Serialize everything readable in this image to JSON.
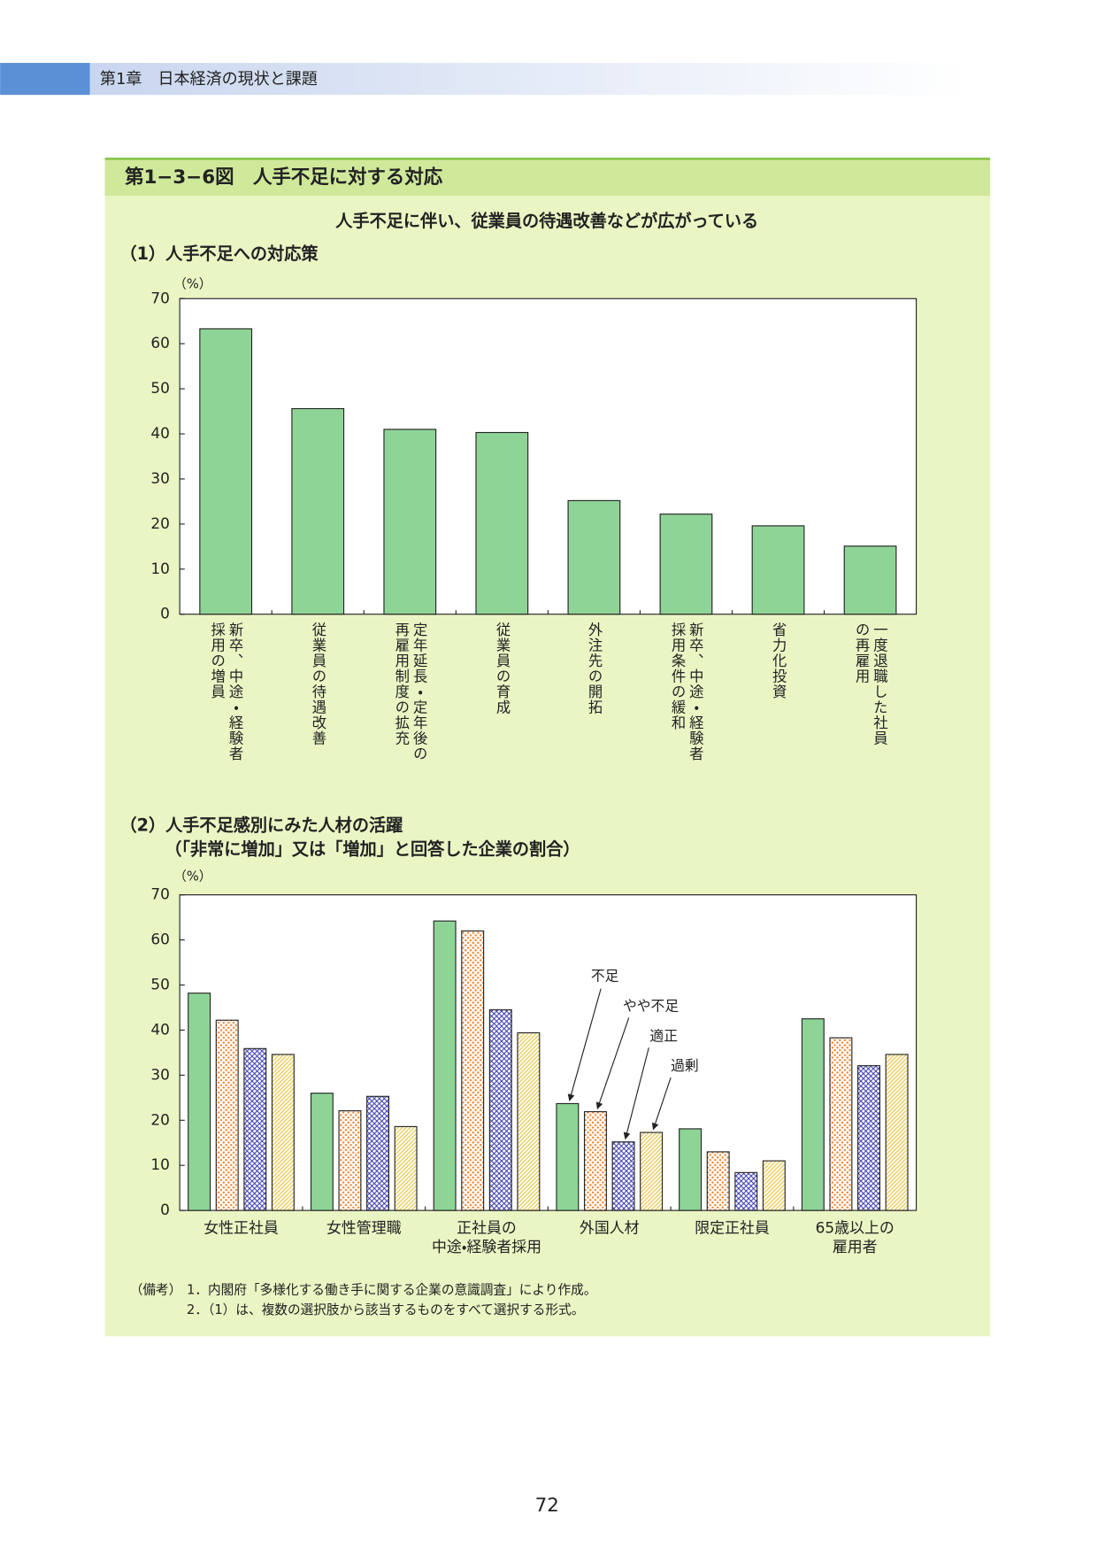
{
  "header": {
    "chapter": "第1章　日本経済の現状と課題"
  },
  "figure": {
    "title": "第1−3−6図　人手不足に対する対応",
    "subtitle": "人手不足に伴い、従業員の待遇改善などが広がっている"
  },
  "chart_data": [
    {
      "type": "bar",
      "title": "（1）人手不足への対応策",
      "y_unit": "（%）",
      "categories": [
        "新卒、中途・経験者\n採用の増員",
        "従業員の待遇改善",
        "定年延長・定年後の\n再雇用制度の拡充",
        "従業員の育成",
        "外注先の開拓",
        "新卒、中途・経験者\n採用条件の緩和",
        "省力化投資",
        "一度退職した社員\nの再雇用"
      ],
      "values": [
        63.3,
        45.6,
        41.0,
        40.3,
        25.2,
        22.2,
        19.6,
        15.1
      ],
      "color": "#8fd497",
      "ylim": [
        0,
        70
      ],
      "yticks": [
        0,
        10,
        20,
        30,
        40,
        50,
        60,
        70
      ]
    },
    {
      "type": "bar",
      "title": "（2）人手不足感別にみた人材の活躍",
      "subtitle": "（「非常に増加」又は「増加」と回答した企業の割合）",
      "y_unit": "（%）",
      "categories": [
        "女性正社員",
        "女性管理職",
        "正社員の\n中途・経験者採用",
        "外国人材",
        "限定正社員",
        "65歳以上の\n雇用者"
      ],
      "series": [
        {
          "name": "不足",
          "color": "#8fd497",
          "pattern": "solid",
          "values": [
            48.2,
            26.0,
            64.2,
            23.7,
            18.1,
            42.5
          ]
        },
        {
          "name": "やや不足",
          "color": "#f08a3c",
          "pattern": "dots",
          "values": [
            42.2,
            22.1,
            62.0,
            21.9,
            13.0,
            38.3
          ]
        },
        {
          "name": "適正",
          "color": "#3a3ab0",
          "pattern": "crosshatch",
          "values": [
            35.9,
            25.3,
            44.5,
            15.2,
            8.4,
            32.1
          ]
        },
        {
          "name": "過剰",
          "color": "#e8c23a",
          "pattern": "diagonal",
          "values": [
            34.6,
            18.6,
            39.4,
            17.3,
            11.0,
            34.6
          ]
        }
      ],
      "ylim": [
        0,
        70
      ],
      "yticks": [
        0,
        10,
        20,
        30,
        40,
        50,
        60,
        70
      ]
    }
  ],
  "notes": {
    "label": "（備考）",
    "items": [
      "1．内閣府「多様化する働き手に関する企業の意識調査」により作成。",
      "2．（1）は、複数の選択肢から該当するものをすべて選択する形式。"
    ]
  },
  "page_number": "72"
}
